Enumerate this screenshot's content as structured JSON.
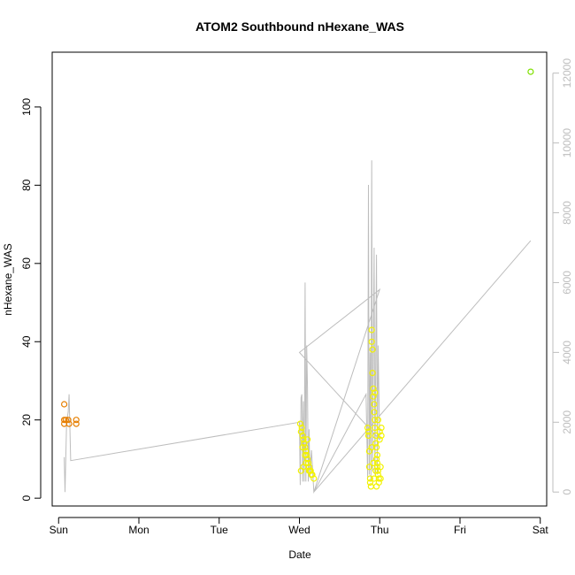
{
  "chart_data": {
    "type": "scatter",
    "title": "ATOM2 Southbound nHexane_WAS",
    "xlabel": "Date",
    "ylabel": "nHexane_WAS",
    "x_ticks": [
      "Sun",
      "Mon",
      "Tue",
      "Wed",
      "Thu",
      "Fri",
      "Sat"
    ],
    "xlim": [
      -0.08,
      6.08
    ],
    "ylim": [
      -2,
      114
    ],
    "y_ticks": [
      0,
      20,
      40,
      60,
      80,
      100
    ],
    "y2lim": [
      -400,
      12600
    ],
    "y2_ticks": [
      0,
      2000,
      4000,
      6000,
      8000,
      10000,
      12000
    ],
    "y2_color": "#bdbdbd",
    "grid": false,
    "legend": "none",
    "series": [
      {
        "type": "points",
        "color_scale": [
          "#e67e00",
          "#f2f200",
          "#7fe000"
        ],
        "points": [
          [
            0.07,
            24,
            0
          ],
          [
            0.07,
            20,
            0
          ],
          [
            0.07,
            19,
            0
          ],
          [
            0.09,
            20,
            0
          ],
          [
            0.12,
            20,
            0
          ],
          [
            0.13,
            19,
            0
          ],
          [
            0.22,
            20,
            0
          ],
          [
            0.22,
            19,
            0
          ],
          [
            3.01,
            19,
            1
          ],
          [
            3.02,
            17,
            1
          ],
          [
            3.03,
            18,
            1
          ],
          [
            3.04,
            16,
            1
          ],
          [
            3.05,
            15,
            1
          ],
          [
            3.06,
            14,
            1
          ],
          [
            3.07,
            13,
            1
          ],
          [
            3.08,
            12,
            1
          ],
          [
            3.09,
            11,
            1
          ],
          [
            3.1,
            10,
            1
          ],
          [
            3.11,
            9,
            1
          ],
          [
            3.12,
            8,
            1
          ],
          [
            3.13,
            7,
            1
          ],
          [
            3.14,
            7,
            1
          ],
          [
            3.16,
            6,
            1
          ],
          [
            3.18,
            5,
            1
          ],
          [
            3.02,
            7,
            1
          ],
          [
            3.05,
            8,
            1
          ],
          [
            3.08,
            9,
            1
          ],
          [
            3.12,
            7,
            1
          ],
          [
            3.15,
            6,
            1
          ],
          [
            3.04,
            13,
            1
          ],
          [
            3.07,
            11,
            1
          ],
          [
            3.1,
            15,
            1
          ],
          [
            3.85,
            18,
            1
          ],
          [
            3.86,
            17,
            1
          ],
          [
            3.86,
            16,
            1
          ],
          [
            3.87,
            12,
            1
          ],
          [
            3.87,
            8,
            1
          ],
          [
            3.88,
            5,
            1
          ],
          [
            3.88,
            4,
            1
          ],
          [
            3.89,
            3,
            1
          ],
          [
            3.9,
            43,
            1
          ],
          [
            3.9,
            40,
            1
          ],
          [
            3.91,
            38,
            1
          ],
          [
            3.91,
            32,
            1
          ],
          [
            3.92,
            28,
            1
          ],
          [
            3.92,
            26,
            1
          ],
          [
            3.93,
            24,
            1
          ],
          [
            3.93,
            22,
            1
          ],
          [
            3.94,
            20,
            1
          ],
          [
            3.94,
            18,
            1
          ],
          [
            3.95,
            16,
            1
          ],
          [
            3.95,
            14,
            1
          ],
          [
            3.96,
            13,
            1
          ],
          [
            3.96,
            10,
            1
          ],
          [
            3.97,
            9,
            1
          ],
          [
            3.97,
            8,
            1
          ],
          [
            3.98,
            7,
            1
          ],
          [
            3.98,
            6,
            1
          ],
          [
            3.99,
            5,
            1
          ],
          [
            3.99,
            4,
            1
          ],
          [
            3.9,
            13,
            1
          ],
          [
            3.92,
            9,
            1
          ],
          [
            3.94,
            27,
            1
          ],
          [
            3.96,
            3,
            1
          ],
          [
            3.98,
            20,
            1
          ],
          [
            4.0,
            17,
            1
          ],
          [
            4.0,
            15,
            1
          ],
          [
            4.01,
            8,
            1
          ],
          [
            4.01,
            5,
            1
          ],
          [
            4.02,
            16,
            1
          ],
          [
            4.02,
            18,
            1
          ],
          [
            3.93,
            5,
            1
          ],
          [
            3.95,
            7,
            1
          ],
          [
            3.97,
            11,
            1
          ],
          [
            5.88,
            109,
            2
          ]
        ]
      },
      {
        "type": "line",
        "axis": "right",
        "color": "#bdbdbd",
        "values_y2": [
          [
            0.07,
            1000
          ],
          [
            0.08,
            0
          ],
          [
            0.1,
            2000
          ],
          [
            0.12,
            2300
          ],
          [
            0.13,
            2800
          ],
          [
            0.15,
            900
          ],
          [
            3.0,
            2000
          ],
          [
            3.01,
            200
          ],
          [
            3.02,
            2700
          ],
          [
            3.03,
            2800
          ],
          [
            3.04,
            300
          ],
          [
            3.05,
            2600
          ],
          [
            3.06,
            300
          ],
          [
            3.07,
            6000
          ],
          [
            3.08,
            300
          ],
          [
            3.09,
            4200
          ],
          [
            3.1,
            3000
          ],
          [
            3.11,
            300
          ],
          [
            3.12,
            1800
          ],
          [
            3.13,
            400
          ],
          [
            3.15,
            1200
          ],
          [
            3.18,
            0
          ],
          [
            3.83,
            2800
          ],
          [
            3.85,
            400
          ],
          [
            3.86,
            8800
          ],
          [
            3.87,
            500
          ],
          [
            3.88,
            4000
          ],
          [
            3.89,
            300
          ],
          [
            3.9,
            9500
          ],
          [
            3.91,
            600
          ],
          [
            3.93,
            7000
          ],
          [
            3.94,
            500
          ],
          [
            3.96,
            6800
          ],
          [
            3.97,
            500
          ],
          [
            3.98,
            4200
          ],
          [
            4.0,
            1500
          ],
          [
            3.0,
            4000
          ],
          [
            4.0,
            5800
          ],
          [
            3.18,
            0
          ],
          [
            5.88,
            7200
          ]
        ]
      }
    ]
  }
}
